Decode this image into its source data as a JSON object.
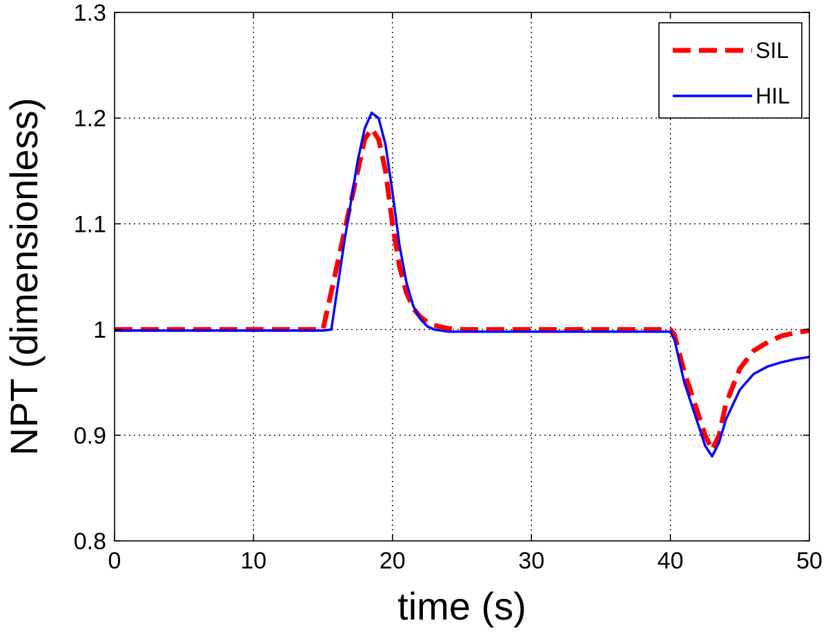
{
  "chart_data": {
    "type": "line",
    "xlabel": "time (s)",
    "ylabel": "NPT (dimensionless)",
    "xlim": [
      0,
      50
    ],
    "ylim": [
      0.8,
      1.3
    ],
    "x_ticks": [
      0,
      10,
      20,
      30,
      40,
      50
    ],
    "y_ticks": [
      0.8,
      0.9,
      1,
      1.1,
      1.2,
      1.3
    ],
    "x_tick_labels": [
      "0",
      "10",
      "20",
      "30",
      "40",
      "50"
    ],
    "y_tick_labels": [
      "0.8",
      "0.9",
      "1",
      "1.1",
      "1.2",
      "1.3"
    ],
    "grid": true,
    "legend_position": "top-right",
    "series": [
      {
        "name": "SIL",
        "color": "#ff0000",
        "style": "dashed",
        "x": [
          0,
          15.0,
          15.5,
          16.5,
          17.5,
          18.0,
          18.5,
          19.0,
          19.5,
          20.0,
          20.5,
          21.0,
          21.5,
          22.0,
          22.5,
          23.0,
          24.0,
          25.0,
          30.0,
          35.0,
          40.0,
          40.3,
          41.0,
          42.0,
          42.5,
          43.0,
          43.5,
          44.0,
          45.0,
          46.0,
          47.0,
          48.0,
          49.0,
          50.0
        ],
        "y": [
          1.0,
          1.0,
          1.03,
          1.09,
          1.15,
          1.18,
          1.19,
          1.18,
          1.15,
          1.1,
          1.06,
          1.035,
          1.02,
          1.012,
          1.007,
          1.004,
          1.001,
          1.0,
          1.0,
          1.0,
          1.0,
          0.995,
          0.96,
          0.92,
          0.9,
          0.886,
          0.9,
          0.93,
          0.963,
          0.98,
          0.988,
          0.994,
          0.997,
          0.999
        ]
      },
      {
        "name": "HIL",
        "color": "#0000ff",
        "style": "solid",
        "x": [
          0,
          15.0,
          15.6,
          16.5,
          17.5,
          18.0,
          18.5,
          19.0,
          19.5,
          20.0,
          20.5,
          21.0,
          21.5,
          22.0,
          22.5,
          23.0,
          24.0,
          25.0,
          30.0,
          35.0,
          40.0,
          40.3,
          41.0,
          42.0,
          42.5,
          43.0,
          43.5,
          44.0,
          45.0,
          46.0,
          47.0,
          48.0,
          49.0,
          50.0
        ],
        "y": [
          0.999,
          0.999,
          1.0,
          1.08,
          1.16,
          1.19,
          1.205,
          1.2,
          1.175,
          1.13,
          1.08,
          1.045,
          1.022,
          1.01,
          1.003,
          1.0,
          0.998,
          0.998,
          0.998,
          0.998,
          0.998,
          0.99,
          0.95,
          0.91,
          0.89,
          0.88,
          0.893,
          0.915,
          0.943,
          0.958,
          0.965,
          0.969,
          0.972,
          0.974
        ]
      }
    ]
  }
}
